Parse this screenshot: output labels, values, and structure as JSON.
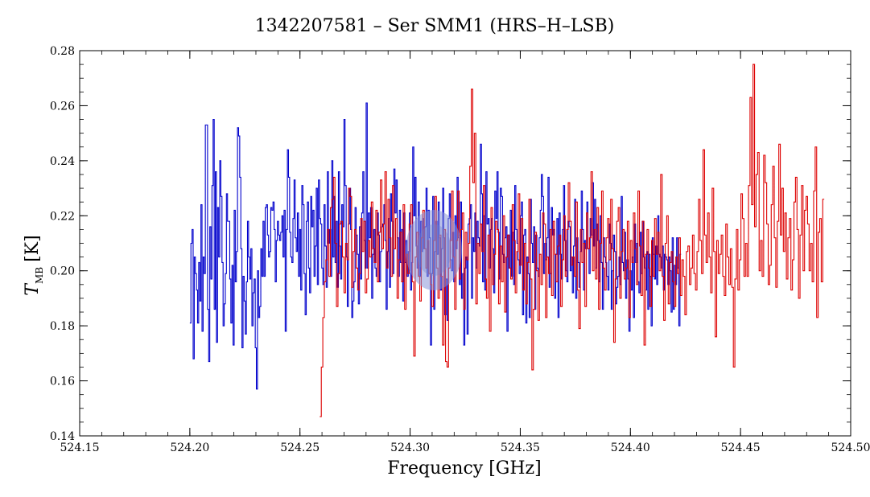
{
  "chart_data": {
    "type": "line",
    "title": "1342207581 – Ser SMM1 (HRS–H–LSB)",
    "xlabel": "Frequency [GHz]",
    "ylabel": "T",
    "ylabel_sub": "MB",
    "ylabel_unit": "[K]",
    "xlim": [
      524.15,
      524.5
    ],
    "ylim": [
      0.14,
      0.28
    ],
    "xticks": [
      524.15,
      524.2,
      524.25,
      524.3,
      524.35,
      524.4,
      524.45,
      524.5
    ],
    "yticks": [
      0.14,
      0.16,
      0.18,
      0.2,
      0.22,
      0.24,
      0.26,
      0.28
    ],
    "grid": false,
    "series": [
      {
        "color": "#0000cc",
        "style": "step",
        "x_start": 524.2,
        "x_end": 524.423,
        "values": [
          0.181,
          0.21,
          0.215,
          0.168,
          0.205,
          0.199,
          0.193,
          0.181,
          0.203,
          0.189,
          0.224,
          0.178,
          0.205,
          0.199,
          0.253,
          0.253,
          0.186,
          0.167,
          0.216,
          0.197,
          0.231,
          0.255,
          0.186,
          0.236,
          0.174,
          0.223,
          0.205,
          0.24,
          0.227,
          0.203,
          0.18,
          0.188,
          0.199,
          0.228,
          0.218,
          0.218,
          0.197,
          0.181,
          0.202,
          0.173,
          0.222,
          0.196,
          0.207,
          0.252,
          0.249,
          0.234,
          0.208,
          0.172,
          0.198,
          0.189,
          0.177,
          0.196,
          0.218,
          0.205,
          0.197,
          0.208,
          0.18,
          0.192,
          0.197,
          0.172,
          0.157,
          0.2,
          0.183,
          0.187,
          0.208,
          0.198,
          0.218,
          0.198,
          0.223,
          0.224,
          0.213,
          0.205,
          0.207,
          0.223,
          0.222,
          0.225,
          0.215,
          0.196,
          0.211,
          0.218,
          0.213,
          0.211,
          0.214,
          0.22,
          0.205,
          0.222,
          0.178,
          0.215,
          0.244,
          0.234,
          0.214,
          0.205,
          0.203,
          0.219,
          0.233,
          0.212,
          0.207,
          0.221,
          0.198,
          0.215,
          0.193,
          0.231,
          0.224,
          0.199,
          0.184,
          0.218,
          0.225,
          0.201,
          0.192,
          0.227,
          0.216,
          0.222,
          0.198,
          0.209,
          0.23,
          0.195,
          0.233,
          0.219,
          0.217,
          0.201,
          0.195,
          0.224,
          0.209,
          0.194,
          0.236,
          0.21,
          0.215,
          0.198,
          0.24,
          0.205,
          0.227,
          0.203,
          0.218,
          0.194,
          0.236,
          0.209,
          0.197,
          0.224,
          0.216,
          0.255,
          0.231,
          0.205,
          0.187,
          0.217,
          0.23,
          0.215,
          0.183,
          0.189,
          0.196,
          0.223,
          0.213,
          0.206,
          0.188,
          0.216,
          0.197,
          0.221,
          0.236,
          0.211,
          0.201,
          0.261,
          0.201,
          0.221,
          0.212,
          0.223,
          0.19,
          0.206,
          0.215,
          0.201,
          0.198,
          0.221,
          0.213,
          0.196,
          0.207,
          0.216,
          0.217,
          0.224,
          0.211,
          0.186,
          0.207,
          0.219,
          0.194,
          0.228,
          0.218,
          0.199,
          0.237,
          0.221,
          0.233,
          0.212,
          0.198,
          0.222,
          0.203,
          0.215,
          0.189,
          0.221,
          0.203,
          0.211,
          0.198,
          0.207,
          0.221,
          0.193,
          0.203,
          0.245,
          0.22,
          0.234,
          0.209,
          0.201,
          0.225,
          0.198,
          0.218,
          0.207,
          0.219,
          0.208,
          0.216,
          0.23,
          0.198,
          0.222,
          0.212,
          0.173,
          0.199,
          0.227,
          0.186,
          0.207,
          0.218,
          0.206,
          0.225,
          0.212,
          0.193,
          0.208,
          0.23,
          0.212,
          0.184,
          0.197,
          0.182,
          0.219,
          0.228,
          0.204,
          0.2,
          0.214,
          0.196,
          0.22,
          0.208,
          0.234,
          0.212,
          0.195,
          0.225,
          0.19,
          0.199,
          0.173,
          0.201,
          0.205,
          0.177,
          0.217,
          0.219,
          0.224,
          0.19,
          0.212,
          0.207,
          0.221,
          0.201,
          0.218,
          0.212,
          0.209,
          0.246,
          0.228,
          0.196,
          0.22,
          0.193,
          0.236,
          0.217,
          0.219,
          0.201,
          0.215,
          0.219,
          0.208,
          0.192,
          0.229,
          0.219,
          0.236,
          0.214,
          0.197,
          0.23,
          0.227,
          0.206,
          0.203,
          0.212,
          0.216,
          0.178,
          0.213,
          0.201,
          0.222,
          0.198,
          0.214,
          0.195,
          0.231,
          0.215,
          0.21,
          0.204,
          0.199,
          0.22,
          0.225,
          0.184,
          0.213,
          0.215,
          0.181,
          0.205,
          0.199,
          0.183,
          0.226,
          0.21,
          0.203,
          0.216,
          0.186,
          0.213,
          0.201,
          0.198,
          0.212,
          0.222,
          0.235,
          0.227,
          0.199,
          0.21,
          0.204,
          0.212,
          0.234,
          0.194,
          0.199,
          0.223,
          0.213,
          0.215,
          0.19,
          0.206,
          0.219,
          0.183,
          0.221,
          0.206,
          0.197,
          0.215,
          0.231,
          0.211,
          0.2,
          0.196,
          0.218,
          0.216,
          0.2,
          0.205,
          0.192,
          0.209,
          0.226,
          0.19,
          0.212,
          0.203,
          0.194,
          0.207,
          0.229,
          0.215,
          0.193,
          0.211,
          0.208,
          0.225,
          0.208,
          0.199,
          0.219,
          0.213,
          0.232,
          0.209,
          0.226,
          0.201,
          0.217,
          0.211,
          0.196,
          0.22,
          0.203,
          0.186,
          0.212,
          0.205,
          0.203,
          0.198,
          0.193,
          0.217,
          0.21,
          0.186,
          0.2,
          0.213,
          0.207,
          0.188,
          0.194,
          0.198,
          0.205,
          0.195,
          0.227,
          0.203,
          0.2,
          0.214,
          0.19,
          0.204,
          0.197,
          0.178,
          0.2,
          0.193,
          0.205,
          0.183,
          0.217,
          0.203,
          0.21,
          0.196,
          0.192,
          0.214,
          0.199,
          0.218,
          0.205,
          0.201,
          0.193,
          0.207,
          0.186,
          0.206,
          0.198,
          0.18,
          0.212,
          0.206,
          0.197,
          0.209,
          0.195,
          0.22,
          0.206,
          0.205,
          0.201,
          0.209,
          0.193,
          0.206,
          0.205,
          0.204,
          0.195,
          0.205,
          0.2,
          0.185,
          0.212,
          0.186,
          0.202,
          0.195,
          0.212,
          0.201,
          0.18,
          0.206
        ]
      },
      {
        "color": "#dd0000",
        "style": "step",
        "x_start": 524.259,
        "x_end": 524.488,
        "values": [
          0.147,
          0.165,
          0.183,
          0.196,
          0.204,
          0.215,
          0.198,
          0.223,
          0.226,
          0.234,
          0.21,
          0.187,
          0.199,
          0.217,
          0.218,
          0.205,
          0.192,
          0.21,
          0.204,
          0.23,
          0.227,
          0.194,
          0.207,
          0.215,
          0.201,
          0.193,
          0.199,
          0.219,
          0.207,
          0.218,
          0.192,
          0.197,
          0.211,
          0.205,
          0.225,
          0.208,
          0.203,
          0.222,
          0.196,
          0.214,
          0.233,
          0.208,
          0.217,
          0.236,
          0.201,
          0.226,
          0.212,
          0.198,
          0.231,
          0.208,
          0.219,
          0.19,
          0.204,
          0.214,
          0.196,
          0.224,
          0.186,
          0.206,
          0.199,
          0.217,
          0.224,
          0.196,
          0.169,
          0.205,
          0.214,
          0.198,
          0.189,
          0.212,
          0.222,
          0.208,
          0.201,
          0.211,
          0.199,
          0.195,
          0.187,
          0.211,
          0.227,
          0.201,
          0.19,
          0.213,
          0.198,
          0.173,
          0.215,
          0.167,
          0.165,
          0.201,
          0.211,
          0.229,
          0.205,
          0.186,
          0.211,
          0.229,
          0.197,
          0.215,
          0.221,
          0.186,
          0.214,
          0.204,
          0.21,
          0.238,
          0.266,
          0.232,
          0.25,
          0.188,
          0.21,
          0.199,
          0.217,
          0.207,
          0.231,
          0.197,
          0.19,
          0.213,
          0.178,
          0.223,
          0.195,
          0.206,
          0.218,
          0.215,
          0.188,
          0.209,
          0.196,
          0.22,
          0.185,
          0.205,
          0.213,
          0.201,
          0.197,
          0.224,
          0.211,
          0.192,
          0.207,
          0.228,
          0.202,
          0.219,
          0.193,
          0.21,
          0.188,
          0.203,
          0.226,
          0.197,
          0.164,
          0.186,
          0.214,
          0.2,
          0.182,
          0.206,
          0.195,
          0.221,
          0.217,
          0.183,
          0.205,
          0.199,
          0.215,
          0.191,
          0.218,
          0.206,
          0.196,
          0.209,
          0.213,
          0.187,
          0.204,
          0.22,
          0.198,
          0.215,
          0.232,
          0.218,
          0.202,
          0.205,
          0.198,
          0.225,
          0.193,
          0.179,
          0.215,
          0.203,
          0.21,
          0.187,
          0.221,
          0.208,
          0.212,
          0.236,
          0.2,
          0.215,
          0.197,
          0.223,
          0.186,
          0.21,
          0.229,
          0.201,
          0.193,
          0.212,
          0.219,
          0.204,
          0.226,
          0.208,
          0.174,
          0.197,
          0.218,
          0.223,
          0.19,
          0.207,
          0.215,
          0.197,
          0.201,
          0.218,
          0.183,
          0.211,
          0.203,
          0.221,
          0.208,
          0.195,
          0.229,
          0.209,
          0.191,
          0.218,
          0.173,
          0.206,
          0.215,
          0.201,
          0.187,
          0.211,
          0.198,
          0.219,
          0.206,
          0.214,
          0.2,
          0.235,
          0.198,
          0.182,
          0.21,
          0.22,
          0.188,
          0.203,
          0.207,
          0.196,
          0.187,
          0.205,
          0.199,
          0.212,
          0.191,
          0.204,
          0.198,
          0.184,
          0.207,
          0.209,
          0.195,
          0.201,
          0.213,
          0.199,
          0.193,
          0.207,
          0.226,
          0.211,
          0.199,
          0.244,
          0.213,
          0.203,
          0.221,
          0.205,
          0.192,
          0.23,
          0.207,
          0.176,
          0.211,
          0.199,
          0.206,
          0.213,
          0.198,
          0.191,
          0.217,
          0.205,
          0.195,
          0.208,
          0.194,
          0.165,
          0.197,
          0.215,
          0.193,
          0.204,
          0.228,
          0.219,
          0.198,
          0.21,
          0.198,
          0.231,
          0.263,
          0.224,
          0.275,
          0.216,
          0.235,
          0.243,
          0.2,
          0.211,
          0.198,
          0.242,
          0.232,
          0.217,
          0.195,
          0.202,
          0.224,
          0.238,
          0.212,
          0.194,
          0.218,
          0.246,
          0.213,
          0.23,
          0.207,
          0.221,
          0.197,
          0.212,
          0.219,
          0.193,
          0.204,
          0.225,
          0.234,
          0.215,
          0.19,
          0.213,
          0.231,
          0.2,
          0.222,
          0.227,
          0.217,
          0.2,
          0.21,
          0.196,
          0.229,
          0.245,
          0.183,
          0.214,
          0.219,
          0.196,
          0.226
        ]
      }
    ]
  }
}
